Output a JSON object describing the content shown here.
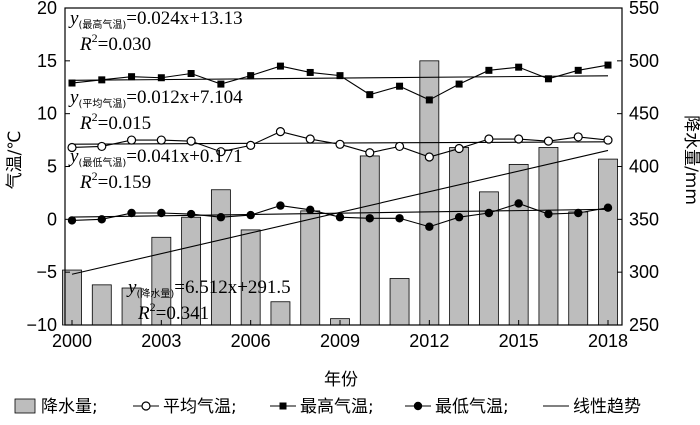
{
  "chart_data": {
    "type": "bar",
    "xlabel": "年份",
    "ylabel_left": "气温/℃",
    "ylabel_right": "降水量/mm",
    "x": [
      2000,
      2001,
      2002,
      2003,
      2004,
      2005,
      2006,
      2007,
      2008,
      2009,
      2010,
      2011,
      2012,
      2013,
      2014,
      2015,
      2016,
      2017,
      2018
    ],
    "x_ticks": [
      2000,
      2003,
      2006,
      2009,
      2012,
      2015,
      2018
    ],
    "ylim_left": [
      -10,
      20
    ],
    "y_ticks_left": [
      -10,
      -5,
      0,
      5,
      10,
      15,
      20
    ],
    "ylim_right": [
      250,
      550
    ],
    "y_ticks_right": [
      250,
      300,
      350,
      400,
      450,
      500,
      550
    ],
    "series": [
      {
        "name": "降水量",
        "kind": "bar",
        "axis": "right",
        "color": "#bdbdbd",
        "values": [
          302,
          288,
          285,
          333,
          352,
          378,
          340,
          272,
          358,
          256,
          410,
          294,
          500,
          418,
          376,
          402,
          418,
          357,
          407
        ]
      },
      {
        "name": "最高气温",
        "kind": "line",
        "marker": "square",
        "axis": "left",
        "values": [
          12.9,
          13.2,
          13.5,
          13.4,
          13.8,
          12.8,
          13.6,
          14.5,
          13.9,
          13.6,
          11.8,
          12.6,
          11.3,
          12.8,
          14.1,
          14.4,
          13.3,
          14.1,
          14.6
        ]
      },
      {
        "name": "平均气温",
        "kind": "line",
        "marker": "open-circle",
        "axis": "left",
        "values": [
          6.8,
          6.9,
          7.5,
          7.5,
          7.4,
          6.4,
          7.0,
          8.3,
          7.6,
          7.1,
          6.3,
          6.9,
          5.9,
          6.7,
          7.6,
          7.6,
          7.4,
          7.8,
          7.5
        ]
      },
      {
        "name": "最低气温",
        "kind": "line",
        "marker": "filled-circle",
        "axis": "left",
        "values": [
          -0.1,
          0.0,
          0.6,
          0.6,
          0.5,
          0.2,
          0.4,
          1.3,
          0.9,
          0.2,
          0.1,
          0.1,
          -0.7,
          0.2,
          0.6,
          1.5,
          0.5,
          0.6,
          1.1
        ]
      }
    ],
    "trendlines": [
      {
        "series": "最高气温",
        "slope": 0.024,
        "intercept": 13.13,
        "r2": 0.03,
        "axis": "left"
      },
      {
        "series": "平均气温",
        "slope": 0.012,
        "intercept": 7.104,
        "r2": 0.015,
        "axis": "left"
      },
      {
        "series": "最低气温",
        "slope": 0.041,
        "intercept": 0.171,
        "r2": 0.159,
        "axis": "left"
      },
      {
        "series": "降水量",
        "slope": 6.512,
        "intercept": 291.5,
        "r2": 0.341,
        "axis": "right"
      }
    ],
    "annotations": [
      {
        "y_sub": "(最高气温)",
        "eq": "=0.024x+13.13",
        "r2_text": "=0.030"
      },
      {
        "y_sub": "(平均气温)",
        "eq": "=0.012x+7.104",
        "r2_text": "=0.015"
      },
      {
        "y_sub": "(最低气温)",
        "eq": "=0.041x+0.171",
        "r2_text": "=0.159"
      },
      {
        "y_sub": "(降水量)",
        "eq": "=6.512x+291.5",
        "r2_text": "=0.341"
      }
    ],
    "legend": {
      "position": "bottom",
      "items": [
        {
          "label": "降水量;",
          "symbol": "bar"
        },
        {
          "label": "平均气温;",
          "symbol": "open-circle-line"
        },
        {
          "label": "最高气温;",
          "symbol": "square-line"
        },
        {
          "label": "最低气温;",
          "symbol": "filled-circle-line"
        },
        {
          "label": "线性趋势",
          "symbol": "line"
        }
      ]
    },
    "colors": {
      "bar_fill": "#bdbdbd",
      "bar_stroke": "#000000",
      "line": "#000000",
      "marker": "#000000"
    }
  }
}
